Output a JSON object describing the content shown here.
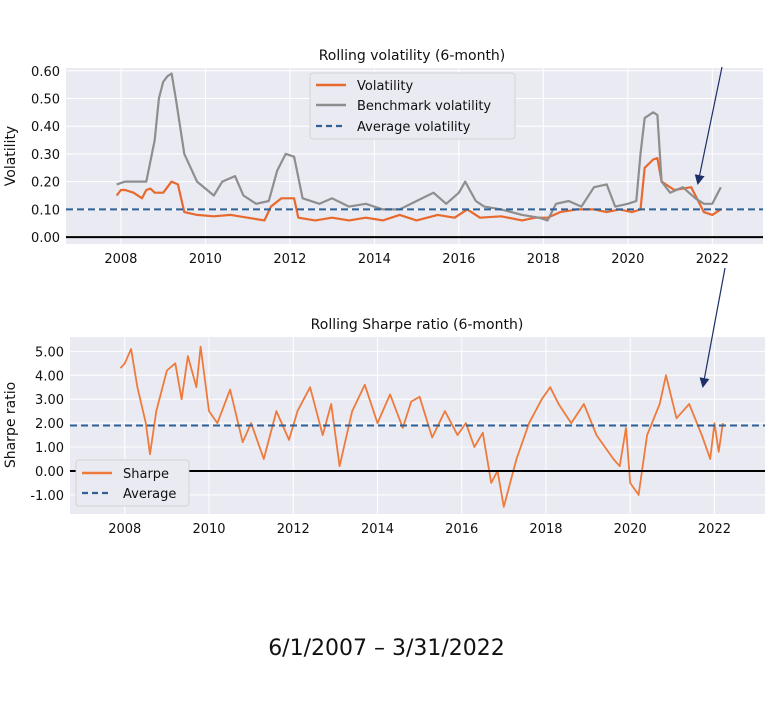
{
  "caption": "6/1/2007 – 3/31/2022",
  "colors": {
    "panel_bg": "#eaeaf2",
    "grid": "#ffffff",
    "volatility": "#e8692e",
    "benchmark": "#8e8e8e",
    "average": "#2f6096",
    "zero_line": "#000000",
    "sharpe": "#ee7b3c",
    "arrow": "#1c2f66"
  },
  "chart_data": [
    {
      "type": "line",
      "title": "Rolling volatility (6-month)",
      "xlabel": "",
      "ylabel": "Volatility",
      "xlim": [
        2006.7,
        2023.2
      ],
      "ylim": [
        -0.025,
        0.61
      ],
      "x_ticks": [
        2008,
        2010,
        2012,
        2014,
        2016,
        2018,
        2020,
        2022
      ],
      "x_tick_labels": [
        "2008",
        "2010",
        "2012",
        "2014",
        "2016",
        "2018",
        "2020",
        "2022"
      ],
      "y_ticks": [
        0.0,
        0.1,
        0.2,
        0.3,
        0.4,
        0.5,
        0.6
      ],
      "y_tick_labels": [
        "0.00",
        "0.10",
        "0.20",
        "0.30",
        "0.40",
        "0.50",
        "0.60"
      ],
      "grid": true,
      "legend_position": "top-center",
      "series": [
        {
          "name": "Volatility",
          "x": [
            2007.9,
            2008.0,
            2008.1,
            2008.3,
            2008.5,
            2008.6,
            2008.7,
            2008.8,
            2009.0,
            2009.2,
            2009.35,
            2009.5,
            2009.8,
            2010.2,
            2010.6,
            2011.0,
            2011.4,
            2011.55,
            2011.8,
            2012.1,
            2012.2,
            2012.6,
            2013.0,
            2013.4,
            2013.8,
            2014.2,
            2014.6,
            2015.0,
            2015.5,
            2015.9,
            2016.2,
            2016.5,
            2017.0,
            2017.5,
            2017.8,
            2018.1,
            2018.4,
            2018.8,
            2019.2,
            2019.5,
            2019.8,
            2020.1,
            2020.3,
            2020.4,
            2020.6,
            2020.7,
            2020.8,
            2021.1,
            2021.5,
            2021.8,
            2022.0,
            2022.2
          ],
          "values": [
            0.15,
            0.17,
            0.17,
            0.16,
            0.14,
            0.17,
            0.175,
            0.16,
            0.16,
            0.2,
            0.19,
            0.09,
            0.08,
            0.075,
            0.08,
            0.07,
            0.06,
            0.11,
            0.14,
            0.14,
            0.07,
            0.06,
            0.07,
            0.06,
            0.07,
            0.06,
            0.08,
            0.06,
            0.08,
            0.07,
            0.1,
            0.07,
            0.075,
            0.06,
            0.07,
            0.07,
            0.09,
            0.1,
            0.1,
            0.09,
            0.1,
            0.09,
            0.1,
            0.25,
            0.28,
            0.285,
            0.2,
            0.17,
            0.18,
            0.09,
            0.08,
            0.1
          ]
        },
        {
          "name": "Benchmark volatility",
          "x": [
            2007.9,
            2008.1,
            2008.4,
            2008.6,
            2008.8,
            2008.9,
            2009.0,
            2009.1,
            2009.2,
            2009.3,
            2009.5,
            2009.8,
            2010.2,
            2010.4,
            2010.7,
            2010.9,
            2011.2,
            2011.5,
            2011.7,
            2011.9,
            2012.1,
            2012.3,
            2012.7,
            2013.0,
            2013.4,
            2013.8,
            2014.2,
            2014.6,
            2015.0,
            2015.4,
            2015.7,
            2016.0,
            2016.15,
            2016.4,
            2016.6,
            2017.0,
            2017.5,
            2017.9,
            2018.1,
            2018.3,
            2018.6,
            2018.9,
            2019.2,
            2019.5,
            2019.7,
            2020.0,
            2020.2,
            2020.3,
            2020.4,
            2020.6,
            2020.7,
            2020.8,
            2021.0,
            2021.3,
            2021.6,
            2021.8,
            2022.0,
            2022.2
          ],
          "values": [
            0.19,
            0.2,
            0.2,
            0.2,
            0.35,
            0.5,
            0.56,
            0.58,
            0.59,
            0.5,
            0.3,
            0.2,
            0.15,
            0.2,
            0.22,
            0.15,
            0.12,
            0.13,
            0.24,
            0.3,
            0.29,
            0.14,
            0.12,
            0.14,
            0.11,
            0.12,
            0.1,
            0.1,
            0.13,
            0.16,
            0.12,
            0.16,
            0.2,
            0.13,
            0.11,
            0.1,
            0.08,
            0.07,
            0.06,
            0.12,
            0.13,
            0.11,
            0.18,
            0.19,
            0.11,
            0.12,
            0.13,
            0.3,
            0.43,
            0.45,
            0.44,
            0.2,
            0.16,
            0.18,
            0.14,
            0.12,
            0.12,
            0.18
          ]
        },
        {
          "name": "Average volatility",
          "x": [
            2006.7,
            2023.2
          ],
          "values": [
            0.1,
            0.1
          ]
        }
      ]
    },
    {
      "type": "line",
      "title": "Rolling Sharpe ratio (6-month)",
      "xlabel": "",
      "ylabel": "Sharpe ratio",
      "xlim": [
        2006.7,
        2023.2
      ],
      "ylim": [
        -1.8,
        5.6
      ],
      "x_ticks": [
        2008,
        2010,
        2012,
        2014,
        2016,
        2018,
        2020,
        2022
      ],
      "x_tick_labels": [
        "2008",
        "2010",
        "2012",
        "2014",
        "2016",
        "2018",
        "2020",
        "2022"
      ],
      "y_ticks": [
        -1,
        0,
        1,
        2,
        3,
        4,
        5
      ],
      "y_tick_labels": [
        "-1.00",
        "0.00",
        "1.00",
        "2.00",
        "3.00",
        "4.00",
        "5.00"
      ],
      "grid": true,
      "legend_position": "lower-left",
      "series": [
        {
          "name": "Sharpe",
          "x": [
            2007.9,
            2008.0,
            2008.15,
            2008.3,
            2008.5,
            2008.6,
            2008.75,
            2009.0,
            2009.2,
            2009.35,
            2009.5,
            2009.7,
            2009.8,
            2010.0,
            2010.2,
            2010.5,
            2010.8,
            2011.0,
            2011.3,
            2011.6,
            2011.9,
            2012.1,
            2012.4,
            2012.7,
            2012.9,
            2013.1,
            2013.4,
            2013.7,
            2014.0,
            2014.3,
            2014.6,
            2014.8,
            2015.0,
            2015.3,
            2015.6,
            2015.9,
            2016.1,
            2016.3,
            2016.5,
            2016.7,
            2016.85,
            2017.0,
            2017.3,
            2017.6,
            2017.9,
            2018.1,
            2018.3,
            2018.6,
            2018.9,
            2019.2,
            2019.4,
            2019.6,
            2019.75,
            2019.9,
            2020.0,
            2020.2,
            2020.4,
            2020.7,
            2020.85,
            2021.1,
            2021.4,
            2021.7,
            2021.9,
            2022.0,
            2022.1,
            2022.2
          ],
          "values": [
            4.3,
            4.5,
            5.1,
            3.5,
            2.0,
            0.7,
            2.5,
            4.2,
            4.5,
            3.0,
            4.8,
            3.5,
            5.2,
            2.5,
            2.0,
            3.4,
            1.2,
            2.0,
            0.5,
            2.5,
            1.3,
            2.5,
            3.5,
            1.5,
            2.8,
            0.2,
            2.5,
            3.6,
            2.0,
            3.2,
            1.8,
            2.9,
            3.1,
            1.4,
            2.5,
            1.5,
            2.0,
            1.0,
            1.6,
            -0.5,
            0.0,
            -1.5,
            0.5,
            2.0,
            3.0,
            3.5,
            2.8,
            2.0,
            2.8,
            1.5,
            1.0,
            0.5,
            0.2,
            1.8,
            -0.5,
            -1.0,
            1.5,
            2.8,
            4.0,
            2.2,
            2.8,
            1.5,
            0.5,
            2.0,
            0.8,
            2.0
          ]
        },
        {
          "name": "Average",
          "x": [
            2006.7,
            2023.2
          ],
          "values": [
            1.9,
            1.9
          ]
        }
      ]
    }
  ]
}
